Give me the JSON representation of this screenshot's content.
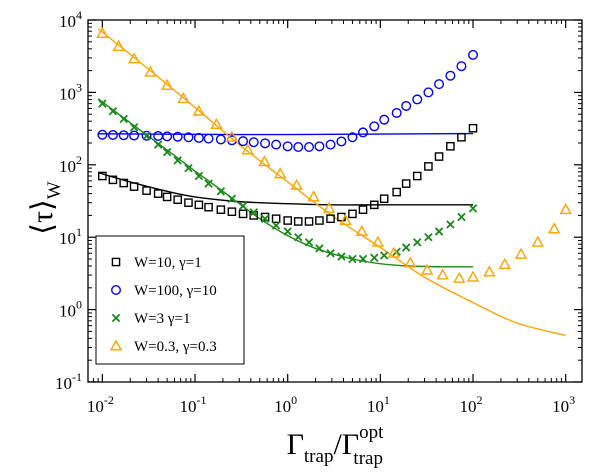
{
  "chart_data": {
    "type": "scatter",
    "xscale": "log",
    "yscale": "log",
    "xlim": [
      0.007,
      1500
    ],
    "ylim": [
      0.1,
      10000
    ],
    "xlabel": {
      "main": "Γ",
      "sub": "trap",
      "mid": "/Γ",
      "sup": "opt",
      "sub2": "trap"
    },
    "ylabel": {
      "main": "⟨τ⟩",
      "sub": "W"
    },
    "x_ticks": [
      {
        "value": 0.01,
        "base": "10",
        "exp": "-2"
      },
      {
        "value": 0.1,
        "base": "10",
        "exp": "-1"
      },
      {
        "value": 1,
        "base": "10",
        "exp": "0"
      },
      {
        "value": 10,
        "base": "10",
        "exp": "1"
      },
      {
        "value": 100,
        "base": "10",
        "exp": "2"
      },
      {
        "value": 1000,
        "base": "10",
        "exp": "3"
      }
    ],
    "y_ticks": [
      {
        "value": 0.1,
        "base": "10",
        "exp": "-1"
      },
      {
        "value": 1,
        "base": "10",
        "exp": "0"
      },
      {
        "value": 10,
        "base": "10",
        "exp": "1"
      },
      {
        "value": 100,
        "base": "10",
        "exp": "2"
      },
      {
        "value": 1000,
        "base": "10",
        "exp": "3"
      },
      {
        "value": 10000,
        "base": "10",
        "exp": "4"
      }
    ],
    "legend_position": "bottom-left",
    "series": [
      {
        "name": "W=10, γ=1",
        "color": "#000000",
        "marker": "square",
        "points": [
          [
            0.01,
            70
          ],
          [
            0.013,
            62
          ],
          [
            0.017,
            56
          ],
          [
            0.022,
            50
          ],
          [
            0.03,
            44
          ],
          [
            0.04,
            40
          ],
          [
            0.05,
            36
          ],
          [
            0.065,
            33
          ],
          [
            0.085,
            30
          ],
          [
            0.11,
            28
          ],
          [
            0.14,
            26
          ],
          [
            0.19,
            24
          ],
          [
            0.25,
            22.5
          ],
          [
            0.33,
            21
          ],
          [
            0.43,
            20
          ],
          [
            0.57,
            19
          ],
          [
            0.75,
            18
          ],
          [
            1.0,
            17
          ],
          [
            1.3,
            16.5
          ],
          [
            1.7,
            16.5
          ],
          [
            2.2,
            17
          ],
          [
            2.9,
            18
          ],
          [
            3.8,
            19
          ],
          [
            5.0,
            21
          ],
          [
            6.5,
            24
          ],
          [
            8.6,
            28
          ],
          [
            11,
            34
          ],
          [
            15,
            42
          ],
          [
            19,
            55
          ],
          [
            25,
            70
          ],
          [
            33,
            95
          ],
          [
            43,
            130
          ],
          [
            57,
            180
          ],
          [
            75,
            240
          ],
          [
            100,
            320
          ]
        ],
        "curve": [
          [
            0.009,
            78
          ],
          [
            0.02,
            58
          ],
          [
            0.05,
            43
          ],
          [
            0.1,
            36
          ],
          [
            0.3,
            31
          ],
          [
            1,
            29
          ],
          [
            3,
            28
          ],
          [
            10,
            28
          ],
          [
            30,
            28
          ],
          [
            100,
            28
          ]
        ]
      },
      {
        "name": "W=100, γ=10",
        "color": "#0000ff",
        "marker": "circle",
        "points": [
          [
            0.01,
            260
          ],
          [
            0.013,
            258
          ],
          [
            0.017,
            256
          ],
          [
            0.022,
            254
          ],
          [
            0.03,
            252
          ],
          [
            0.04,
            250
          ],
          [
            0.05,
            247
          ],
          [
            0.065,
            244
          ],
          [
            0.085,
            240
          ],
          [
            0.11,
            235
          ],
          [
            0.14,
            230
          ],
          [
            0.19,
            224
          ],
          [
            0.25,
            218
          ],
          [
            0.33,
            212
          ],
          [
            0.43,
            205
          ],
          [
            0.57,
            198
          ],
          [
            0.75,
            190
          ],
          [
            1.0,
            180
          ],
          [
            1.3,
            176
          ],
          [
            1.7,
            176
          ],
          [
            2.2,
            180
          ],
          [
            2.9,
            190
          ],
          [
            3.8,
            210
          ],
          [
            5.0,
            240
          ],
          [
            6.5,
            280
          ],
          [
            8.6,
            340
          ],
          [
            11,
            420
          ],
          [
            15,
            520
          ],
          [
            19,
            650
          ],
          [
            25,
            800
          ],
          [
            33,
            1000
          ],
          [
            43,
            1300
          ],
          [
            57,
            1700
          ],
          [
            75,
            2300
          ],
          [
            100,
            3300
          ]
        ],
        "curve": [
          [
            0.009,
            268
          ],
          [
            0.05,
            265
          ],
          [
            0.3,
            262
          ],
          [
            1,
            262
          ],
          [
            3,
            264
          ],
          [
            10,
            266
          ],
          [
            30,
            268
          ],
          [
            100,
            270
          ]
        ]
      },
      {
        "name": "W=3 γ=1",
        "color": "#1a8a1a",
        "marker": "x",
        "points": [
          [
            0.01,
            700
          ],
          [
            0.013,
            550
          ],
          [
            0.017,
            430
          ],
          [
            0.022,
            330
          ],
          [
            0.03,
            250
          ],
          [
            0.04,
            190
          ],
          [
            0.05,
            150
          ],
          [
            0.065,
            115
          ],
          [
            0.085,
            90
          ],
          [
            0.11,
            70
          ],
          [
            0.14,
            55
          ],
          [
            0.19,
            43
          ],
          [
            0.25,
            34
          ],
          [
            0.33,
            27
          ],
          [
            0.43,
            22
          ],
          [
            0.57,
            18
          ],
          [
            0.75,
            14.5
          ],
          [
            1.0,
            12
          ],
          [
            1.3,
            10
          ],
          [
            1.7,
            8.5
          ],
          [
            2.2,
            7
          ],
          [
            2.9,
            6
          ],
          [
            3.8,
            5.4
          ],
          [
            5.0,
            5.0
          ],
          [
            6.5,
            5.0
          ],
          [
            8.6,
            5.2
          ],
          [
            11,
            5.6
          ],
          [
            15,
            6.3
          ],
          [
            19,
            7.2
          ],
          [
            25,
            8.5
          ],
          [
            33,
            10
          ],
          [
            43,
            12
          ],
          [
            57,
            15
          ],
          [
            75,
            19
          ],
          [
            100,
            25
          ]
        ],
        "curve": [
          [
            0.009,
            820
          ],
          [
            0.02,
            380
          ],
          [
            0.05,
            160
          ],
          [
            0.1,
            82
          ],
          [
            0.2,
            43
          ],
          [
            0.5,
            18
          ],
          [
            1,
            10.5
          ],
          [
            2,
            7
          ],
          [
            5,
            5
          ],
          [
            10,
            4.3
          ],
          [
            20,
            4
          ],
          [
            50,
            3.9
          ],
          [
            100,
            3.9
          ]
        ]
      },
      {
        "name": "W=0.3, γ=0.3",
        "color": "#ffa500",
        "marker": "triangle",
        "points": [
          [
            0.01,
            6500
          ],
          [
            0.015,
            4300
          ],
          [
            0.022,
            2900
          ],
          [
            0.033,
            1900
          ],
          [
            0.05,
            1250
          ],
          [
            0.075,
            820
          ],
          [
            0.11,
            550
          ],
          [
            0.17,
            360
          ],
          [
            0.25,
            240
          ],
          [
            0.37,
            160
          ],
          [
            0.56,
            110
          ],
          [
            0.83,
            75
          ],
          [
            1.25,
            52
          ],
          [
            1.9,
            36
          ],
          [
            2.8,
            25
          ],
          [
            4.2,
            17
          ],
          [
            6.3,
            12
          ],
          [
            9.4,
            8.5
          ],
          [
            14,
            6
          ],
          [
            21,
            4.4
          ],
          [
            32,
            3.5
          ],
          [
            47,
            3.0
          ],
          [
            71,
            2.7
          ],
          [
            100,
            2.8
          ],
          [
            150,
            3.3
          ],
          [
            220,
            4.2
          ],
          [
            330,
            5.8
          ],
          [
            500,
            8.5
          ],
          [
            750,
            13
          ],
          [
            1000,
            24
          ]
        ],
        "curve": [
          [
            0.009,
            7600
          ],
          [
            0.03,
            2200
          ],
          [
            0.1,
            620
          ],
          [
            0.3,
            190
          ],
          [
            1,
            58
          ],
          [
            3,
            20
          ],
          [
            10,
            7.2
          ],
          [
            30,
            2.8
          ],
          [
            100,
            1.25
          ],
          [
            300,
            0.65
          ],
          [
            1000,
            0.44
          ]
        ]
      }
    ]
  }
}
